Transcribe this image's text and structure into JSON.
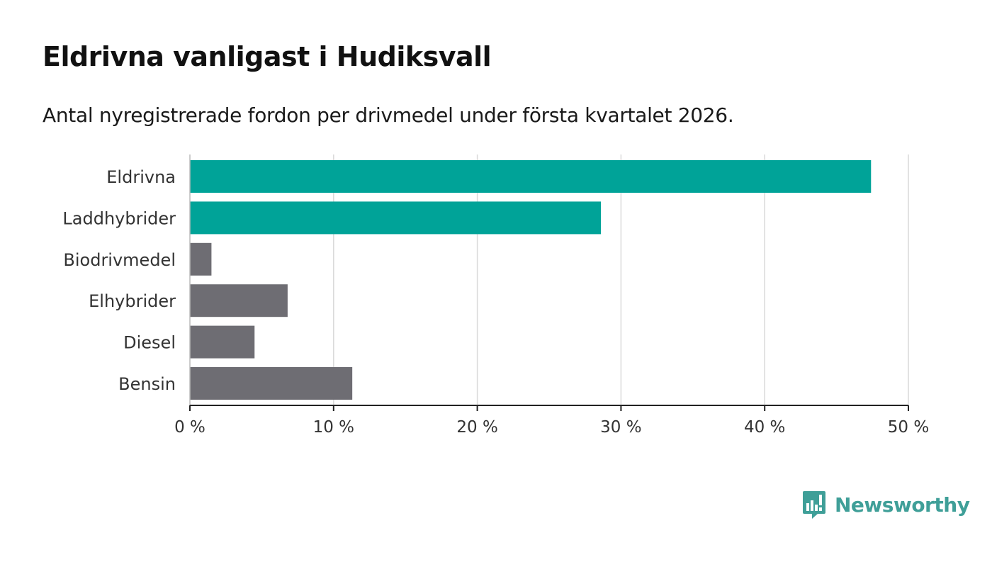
{
  "header": {
    "title": "Eldrivna vanligast i Hudiksvall",
    "subtitle": "Antal nyregistrerade fordon per drivmedel under första kvartalet 2026."
  },
  "brand": {
    "name": "Newsworthy",
    "icon": "bar-chart-speech-bubble-icon",
    "color": "#3f9f98"
  },
  "colors": {
    "highlight": "#00a398",
    "neutral": "#6e6d73",
    "grid": "#d9d9d9",
    "axis": "#222222"
  },
  "chart_data": {
    "type": "bar",
    "orientation": "horizontal",
    "categories": [
      "Eldrivna",
      "Laddhybrider",
      "Biodrivmedel",
      "Elhybrider",
      "Diesel",
      "Bensin"
    ],
    "values": [
      47.4,
      28.6,
      1.5,
      6.8,
      4.5,
      11.3
    ],
    "highlighted": [
      true,
      true,
      false,
      false,
      false,
      false
    ],
    "unit": "%",
    "xlim": [
      0,
      50
    ],
    "ticks": [
      0,
      10,
      20,
      30,
      40,
      50
    ],
    "tick_labels": [
      "0 %",
      "10 %",
      "20 %",
      "30 %",
      "40 %",
      "50 %"
    ],
    "grid": true,
    "legend": "none"
  }
}
